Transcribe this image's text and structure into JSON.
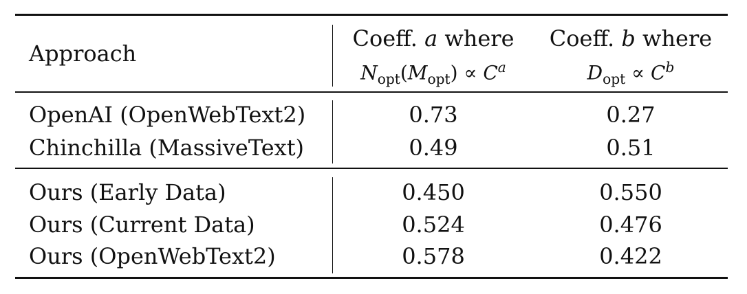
{
  "table": {
    "header": {
      "approach": "Approach",
      "col_a": {
        "line1_prefix": "Coeff.",
        "line1_var": "a",
        "line1_suffix": "where",
        "expr": {
          "n": "N",
          "n_sub": "opt",
          "open": "(",
          "m": "M",
          "m_sub": "opt",
          "close": ")",
          "prop": "∝",
          "c": "C",
          "exp": "a"
        }
      },
      "col_b": {
        "line1_prefix": "Coeff.",
        "line1_var": "b",
        "line1_suffix": "where",
        "expr": {
          "d": "D",
          "d_sub": "opt",
          "prop": "∝",
          "c": "C",
          "exp": "b"
        }
      }
    },
    "group1": [
      {
        "approach": "OpenAI (OpenWebText2)",
        "a": "0.73",
        "b": "0.27"
      },
      {
        "approach": "Chinchilla (MassiveText)",
        "a": "0.49",
        "b": "0.51"
      }
    ],
    "group2": [
      {
        "approach": "Ours (Early Data)",
        "a": "0.450",
        "b": "0.550"
      },
      {
        "approach": "Ours (Current Data)",
        "a": "0.524",
        "b": "0.476"
      },
      {
        "approach": "Ours (OpenWebText2)",
        "a": "0.578",
        "b": "0.422"
      }
    ]
  }
}
